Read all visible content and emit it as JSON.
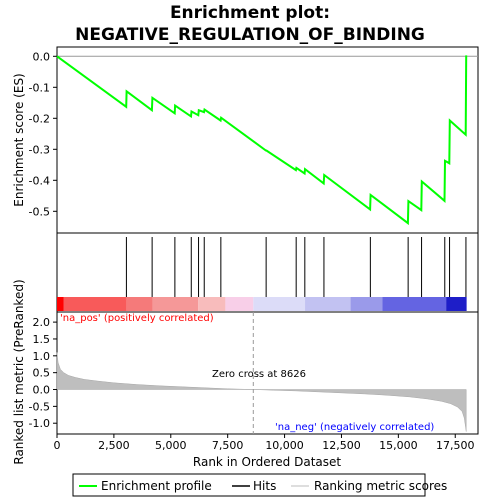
{
  "chart_data": [
    {
      "panel": "enrichment",
      "type": "line",
      "title": "Enrichment plot:\nNEGATIVE_REGULATION_OF_BINDING",
      "title_lines": [
        "Enrichment plot:",
        "NEGATIVE_REGULATION_OF_BINDING"
      ],
      "ylabel": "Enrichment score (ES)",
      "xlim": [
        0,
        18500
      ],
      "ylim": [
        -0.57,
        0.03
      ],
      "yticks": [
        0.0,
        -0.1,
        -0.2,
        -0.3,
        -0.4,
        -0.5
      ],
      "ytick_labels": [
        "0.0",
        "-0.1",
        "-0.2",
        "-0.3",
        "-0.4",
        "-0.5"
      ],
      "line_color": "#00ff00",
      "series": [
        {
          "name": "Enrichment profile",
          "x": [
            0,
            3040,
            3060,
            4170,
            4190,
            5170,
            5190,
            5890,
            5910,
            6210,
            6230,
            6460,
            6480,
            7190,
            7210,
            9180,
            9200,
            10500,
            10520,
            10880,
            10900,
            11720,
            11740,
            13760,
            13780,
            15420,
            15440,
            16010,
            16030,
            17030,
            17050,
            17240,
            17260,
            17960,
            17980
          ],
          "y": [
            0.0,
            -0.163,
            -0.113,
            -0.174,
            -0.134,
            -0.184,
            -0.159,
            -0.194,
            -0.178,
            -0.19,
            -0.174,
            -0.18,
            -0.172,
            -0.207,
            -0.198,
            -0.304,
            -0.304,
            -0.367,
            -0.36,
            -0.378,
            -0.364,
            -0.41,
            -0.383,
            -0.494,
            -0.447,
            -0.538,
            -0.467,
            -0.496,
            -0.404,
            -0.466,
            -0.337,
            -0.345,
            -0.207,
            -0.253,
            0.003
          ]
        }
      ]
    },
    {
      "panel": "hits",
      "type": "scatter",
      "name": "Hits",
      "hit_positions": [
        3050,
        4180,
        5180,
        5900,
        6220,
        6470,
        7200,
        9190,
        10510,
        10890,
        11730,
        13770,
        15430,
        16020,
        17040,
        17250,
        17970
      ]
    },
    {
      "panel": "ranked_metric",
      "type": "area",
      "name": "Ranking metric scores",
      "xlabel": "Rank in Ordered Dataset",
      "ylabel": "Ranked list metric (PreRanked)",
      "xlim": [
        0,
        18500
      ],
      "ylim": [
        -1.32,
        2.3
      ],
      "xticks": [
        0,
        2500,
        5000,
        7500,
        10000,
        12500,
        15000,
        17500
      ],
      "xtick_labels": [
        "0",
        "2,500",
        "5,000",
        "7,500",
        "10,000",
        "12,500",
        "15,000",
        "17,500"
      ],
      "yticks": [
        2.0,
        1.5,
        1.0,
        0.5,
        0.0,
        -0.5,
        -1.0
      ],
      "ytick_labels": [
        "2.0",
        "1.5",
        "1.0",
        "0.5",
        "0.0",
        "-0.5",
        "-1.0"
      ],
      "x": [
        0,
        50,
        150,
        300,
        500,
        800,
        1200,
        1800,
        2500,
        3500,
        4500,
        5500,
        6500,
        7500,
        8626,
        9500,
        10500,
        11500,
        12500,
        13500,
        14500,
        15500,
        16300,
        16900,
        17300,
        17600,
        17800,
        17900,
        17980
      ],
      "y": [
        1.1,
        0.8,
        0.6,
        0.5,
        0.42,
        0.36,
        0.3,
        0.25,
        0.2,
        0.15,
        0.11,
        0.08,
        0.05,
        0.02,
        0.0,
        -0.02,
        -0.04,
        -0.07,
        -0.1,
        -0.13,
        -0.17,
        -0.22,
        -0.28,
        -0.35,
        -0.42,
        -0.52,
        -0.65,
        -0.85,
        -1.25
      ],
      "zero_cross": 8626,
      "annotations": [
        "'na_pos' (positively correlated)",
        "Zero cross at 8626",
        "'na_neg' (negatively correlated)"
      ],
      "annotation_colors": [
        "#ff0000",
        "#000000",
        "#0000ff"
      ]
    }
  ],
  "colorbar": [
    {
      "x0": 0,
      "x1": 300,
      "color": "#ff0000"
    },
    {
      "x0": 300,
      "x1": 3050,
      "color": "#f85a5a"
    },
    {
      "x0": 3050,
      "x1": 4200,
      "color": "#f57a7a"
    },
    {
      "x0": 4200,
      "x1": 6200,
      "color": "#f59898"
    },
    {
      "x0": 6200,
      "x1": 7400,
      "color": "#f8bcbc"
    },
    {
      "x0": 7400,
      "x1": 8626,
      "color": "#f8cfe8"
    },
    {
      "x0": 8626,
      "x1": 10900,
      "color": "#dcdcf8"
    },
    {
      "x0": 10900,
      "x1": 12900,
      "color": "#c2c2f2"
    },
    {
      "x0": 12900,
      "x1": 14300,
      "color": "#9a9aea"
    },
    {
      "x0": 14300,
      "x1": 17100,
      "color": "#6464e2"
    },
    {
      "x0": 17100,
      "x1": 18000,
      "color": "#1e1ec8"
    }
  ],
  "legend": {
    "items": [
      {
        "label": "Enrichment profile",
        "color": "#00ff00"
      },
      {
        "label": "Hits",
        "color": "#000000"
      },
      {
        "label": "Ranking metric scores",
        "color": "#bebebe"
      }
    ]
  }
}
